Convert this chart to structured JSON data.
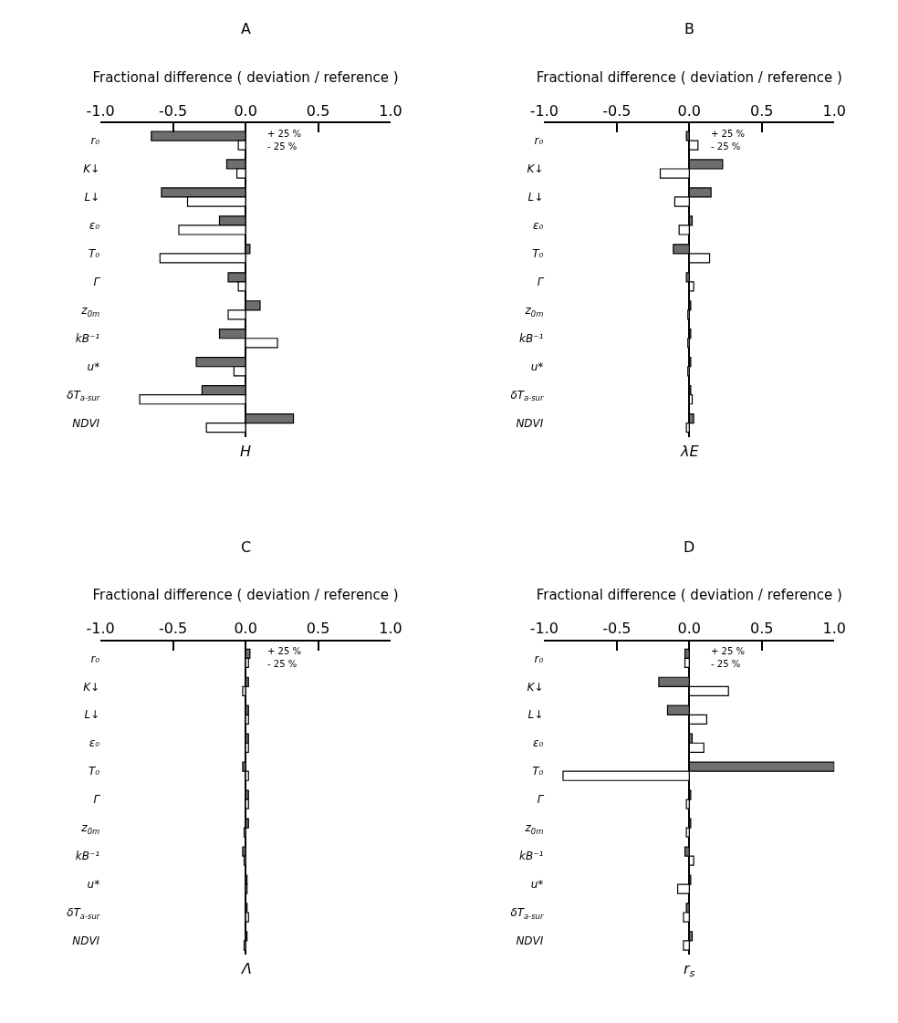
{
  "chart_data": [
    {
      "type": "bar",
      "orientation": "horizontal",
      "title": "A",
      "xlabel": "Fractional difference ( deviation / reference )",
      "annotations": [
        "H"
      ],
      "categories": [
        "r₀",
        "K↓",
        "L↓",
        "ε₀",
        "T₀",
        "Γ",
        "z$_{0m}$",
        "kB⁻¹",
        "u*",
        "δT$_{a-sur}$",
        "NDVI"
      ],
      "series": [
        {
          "name": "+ 25 %",
          "color": "#6e6e6e",
          "values": [
            -0.65,
            -0.13,
            -0.58,
            -0.18,
            0.03,
            -0.12,
            0.1,
            -0.18,
            -0.34,
            -0.3,
            0.33
          ]
        },
        {
          "name": "- 25 %",
          "color": "#ffffff",
          "values": [
            -0.05,
            -0.06,
            -0.4,
            -0.46,
            -0.59,
            -0.05,
            -0.12,
            0.22,
            -0.08,
            -0.73,
            -0.27
          ]
        }
      ],
      "xlim": [
        -1,
        1
      ],
      "xticks": [
        {
          "value": -1,
          "label": "-1.0"
        },
        {
          "value": -0.5,
          "label": "-0.5"
        },
        {
          "value": 0,
          "label": "0.0"
        },
        {
          "value": 0.5,
          "label": "0.5"
        },
        {
          "value": 1,
          "label": "1.0"
        }
      ]
    },
    {
      "type": "bar",
      "orientation": "horizontal",
      "title": "B",
      "xlabel": "Fractional difference ( deviation / reference )",
      "annotations": [
        "λE"
      ],
      "categories": [
        "r₀",
        "K↓",
        "L↓",
        "ε₀",
        "T₀",
        "Γ",
        "z$_{0m}$",
        "kB⁻¹",
        "u*",
        "δT$_{a-sur}$",
        "NDVI"
      ],
      "series": [
        {
          "name": "+ 25 %",
          "color": "#6e6e6e",
          "values": [
            -0.02,
            0.23,
            0.15,
            0.02,
            -0.11,
            -0.02,
            0.01,
            0.01,
            0.01,
            0.01,
            0.03
          ]
        },
        {
          "name": "- 25 %",
          "color": "#ffffff",
          "values": [
            0.06,
            -0.2,
            -0.1,
            -0.07,
            0.14,
            0.03,
            -0.01,
            -0.01,
            -0.01,
            0.02,
            -0.02
          ]
        }
      ],
      "xlim": [
        -1,
        1
      ],
      "xticks": [
        {
          "value": -1,
          "label": "-1.0"
        },
        {
          "value": -0.5,
          "label": "-0.5"
        },
        {
          "value": 0,
          "label": "0.0"
        },
        {
          "value": 0.5,
          "label": "0.5"
        },
        {
          "value": 1,
          "label": "1.0"
        }
      ]
    },
    {
      "type": "bar",
      "orientation": "horizontal",
      "title": "C",
      "xlabel": "Fractional difference ( deviation / reference )",
      "annotations": [
        "Λ"
      ],
      "categories": [
        "r₀",
        "K↓",
        "L↓",
        "ε₀",
        "T₀",
        "Γ",
        "z$_{0m}$",
        "kB⁻¹",
        "u*",
        "δT$_{a-sur}$",
        "NDVI"
      ],
      "series": [
        {
          "name": "+ 25 %",
          "color": "#6e6e6e",
          "values": [
            0.03,
            0.02,
            0.02,
            0.02,
            -0.02,
            0.02,
            0.02,
            -0.02,
            0.01,
            0.01,
            0.01
          ]
        },
        {
          "name": "- 25 %",
          "color": "#ffffff",
          "values": [
            0.02,
            -0.02,
            0.02,
            0.02,
            0.02,
            0.02,
            -0.01,
            -0.01,
            0.01,
            0.02,
            -0.01
          ]
        }
      ],
      "xlim": [
        -1,
        1
      ],
      "xticks": [
        {
          "value": -1,
          "label": "-1.0"
        },
        {
          "value": -0.5,
          "label": "-0.5"
        },
        {
          "value": 0,
          "label": "0.0"
        },
        {
          "value": 0.5,
          "label": "0.5"
        },
        {
          "value": 1,
          "label": "1.0"
        }
      ]
    },
    {
      "type": "bar",
      "orientation": "horizontal",
      "title": "D",
      "xlabel": "Fractional difference ( deviation / reference )",
      "annotations": [
        "r$_{s}$"
      ],
      "categories": [
        "r₀",
        "K↓",
        "L↓",
        "ε₀",
        "T₀",
        "Γ",
        "z$_{0m}$",
        "kB⁻¹",
        "u*",
        "δT$_{a-sur}$",
        "NDVI"
      ],
      "series": [
        {
          "name": "+ 25 %",
          "color": "#6e6e6e",
          "values": [
            -0.03,
            -0.21,
            -0.15,
            0.02,
            1.0,
            0.01,
            0.01,
            -0.03,
            0.01,
            -0.02,
            0.02
          ]
        },
        {
          "name": "- 25 %",
          "color": "#ffffff",
          "values": [
            -0.03,
            0.27,
            0.12,
            0.1,
            -0.87,
            -0.02,
            -0.02,
            0.03,
            -0.08,
            -0.04,
            -0.04
          ]
        }
      ],
      "xlim": [
        -1,
        1
      ],
      "xticks": [
        {
          "value": -1,
          "label": "-1.0"
        },
        {
          "value": -0.5,
          "label": "-0.5"
        },
        {
          "value": 0,
          "label": "0.0"
        },
        {
          "value": 0.5,
          "label": "0.5"
        },
        {
          "value": 1,
          "label": "1.0"
        }
      ]
    }
  ]
}
